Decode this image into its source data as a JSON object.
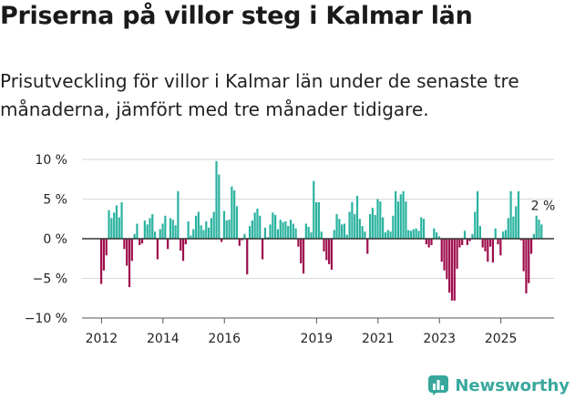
{
  "title": "Priserna på villor steg i Kalmar län",
  "subtitle": "Prisutveckling för villor i Kalmar län under de senaste tre månaderna, jämfört med tre månader tidigare.",
  "brand": {
    "name": "Newsworthy",
    "icon": "newsworthy-logo-icon"
  },
  "colors": {
    "positive": "#2bb3a0",
    "negative": "#9e0e4d",
    "zero_line": "#333333",
    "axis": "#555555",
    "grid": "#d9d9d9"
  },
  "chart_data": {
    "type": "bar",
    "x_unit": "month",
    "ylim": [
      -10,
      10
    ],
    "y_ticks": [
      10,
      5,
      0,
      -5,
      -10
    ],
    "y_tick_labels": [
      "10 %",
      "5 %",
      "0 %",
      "−5 %",
      "−10 %"
    ],
    "x_ticks": [
      "2012",
      "2014",
      "2016",
      "2019",
      "2021",
      "2023",
      "2025"
    ],
    "x_tick_dates": [
      "2012-01",
      "2014-01",
      "2016-01",
      "2019-01",
      "2021-01",
      "2023-01",
      "2025-01"
    ],
    "last_value_label": "2 %",
    "series": [
      {
        "start": "2012-01",
        "values": [
          -5.7,
          -4.0,
          -2.1,
          3.6,
          2.6,
          3.3,
          4.2,
          2.7,
          4.6,
          -1.3,
          -3.4,
          -6.1,
          -2.8,
          0.6,
          1.9,
          -0.8,
          -0.6,
          2.3,
          1.8,
          2.6,
          3.1,
          0.9,
          -2.6,
          1.2,
          1.9,
          2.9,
          -1.3,
          2.6,
          2.4,
          1.7,
          6.0,
          -1.5,
          -2.8,
          -0.7,
          2.2,
          0.4,
          1.2,
          2.9,
          3.4,
          1.7,
          1.1,
          2.2,
          1.4,
          2.6,
          3.4,
          9.8,
          8.1,
          -0.4,
          3.5,
          2.3,
          2.4,
          6.6,
          6.1,
          4.1,
          -0.9,
          -0.2,
          0.6,
          -4.5,
          1.6,
          2.3,
          3.3,
          3.8,
          2.9,
          -2.6,
          1.4,
          0.2,
          1.8,
          3.3,
          3.0,
          1.2,
          2.4,
          2.1,
          2.2,
          1.6,
          2.4,
          1.9,
          1.3,
          -1.0,
          -3.1,
          -4.4,
          1.9,
          1.5,
          0.8,
          7.3,
          4.6,
          4.6,
          0.9,
          -1.6,
          -2.7,
          -3.2,
          -3.9,
          1.1,
          3.1,
          2.5,
          1.8,
          1.9,
          0.5,
          3.4,
          4.6,
          3.1,
          5.4,
          2.5,
          1.6,
          0.9,
          -1.9,
          3.1,
          3.9,
          3.0,
          5.0,
          4.7,
          2.7,
          0.8,
          1.1,
          0.9,
          2.9,
          6.0,
          4.7,
          5.6,
          6.0,
          4.7,
          1.1,
          1.0,
          1.2,
          1.3,
          1.0,
          2.7,
          2.5,
          -0.7,
          -1.1,
          -0.8,
          1.3,
          0.8,
          0.3,
          -2.9,
          -4.0,
          -5.1,
          -6.8,
          -7.8,
          -7.8,
          -3.8,
          -1.1,
          -0.8,
          1.0,
          -0.8,
          -0.3,
          0.6,
          3.4,
          6.0,
          1.6,
          -1.1,
          -1.6,
          -2.9,
          -1.0,
          -3.0,
          1.3,
          -0.7,
          -2.1,
          0.9,
          1.1,
          2.6,
          6.0,
          2.8,
          4.1,
          6.0,
          -0.2,
          -4.1,
          -6.9,
          -5.6,
          -1.9,
          0.6,
          2.9,
          2.4,
          1.8
        ]
      }
    ]
  }
}
